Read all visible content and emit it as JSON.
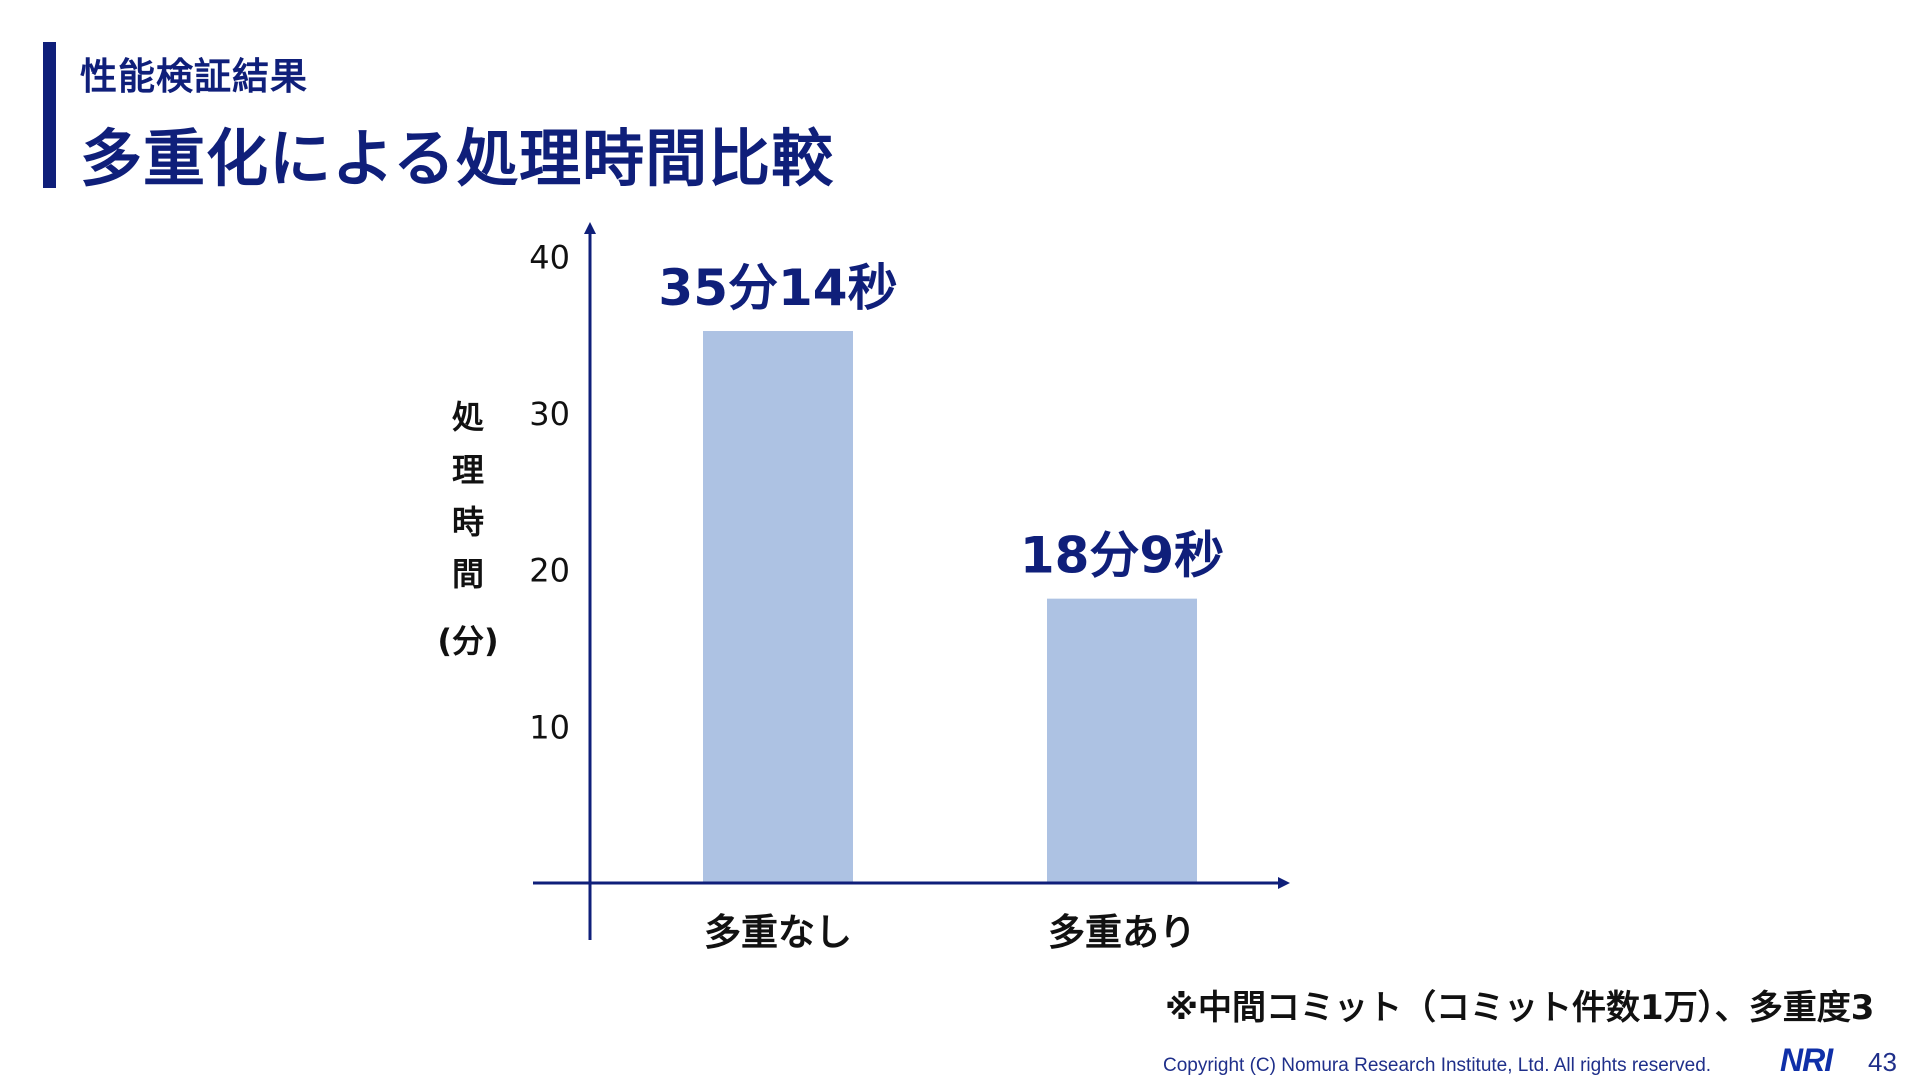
{
  "header": {
    "subtitle": "性能検証結果",
    "title": "多重化による処理時間比較"
  },
  "chart_data": {
    "type": "bar",
    "categories": [
      "多重なし",
      "多重あり"
    ],
    "values": [
      35.233,
      18.15
    ],
    "data_labels": [
      "35分14秒",
      "18分9秒"
    ],
    "ylabel": "処理時間(分)",
    "ylabel_lines": [
      "処",
      "理",
      "時",
      "間",
      "(分)"
    ],
    "yticks": [
      10,
      20,
      30,
      40
    ],
    "ytick_labels": [
      "10",
      "20",
      "30",
      "40"
    ],
    "ylim": [
      0,
      42
    ],
    "grid": false,
    "bar_color": "#adc2e3",
    "axis_color": "#0f1f7a",
    "label_color": "#0f1f7a"
  },
  "footer": {
    "note": "※中間コミット（コミット件数1万）、多重度3",
    "copyright": "Copyright (C)   Nomura Research Institute, Ltd. All rights reserved.",
    "logo": "NRI",
    "page_number": "43"
  }
}
